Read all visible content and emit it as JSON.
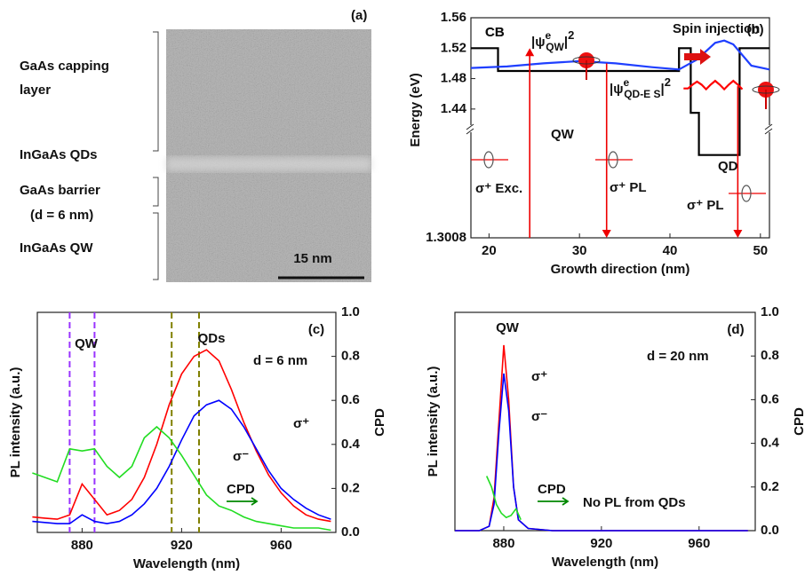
{
  "image_panel": {
    "label": "(a)",
    "layers": [
      "GaAs capping",
      "layer",
      "InGaAs QDs",
      "GaAs barrier",
      "(d = 6 nm)",
      "InGaAs QW"
    ],
    "scale_bar": "15 nm"
  },
  "chart_data": [
    {
      "type": "band-diagram",
      "label": "(b)",
      "xlabel": "Growth direction (nm)",
      "ylabel": "Energy (eV)",
      "xlim": [
        18,
        51
      ],
      "xticks": [
        20,
        30,
        40,
        50
      ],
      "ylim": [
        1.3008,
        1.56
      ],
      "y_break": 1.42,
      "yticks": [
        1.3008,
        1.44,
        1.48,
        1.52,
        1.56
      ],
      "series": [
        {
          "name": "CB",
          "color": "#000000",
          "x": [
            18,
            21,
            21,
            41,
            41,
            42.3,
            42.3,
            43.2,
            43.2,
            47.7,
            47.7,
            51
          ],
          "values": [
            1.52,
            1.52,
            1.49,
            1.49,
            1.52,
            1.52,
            1.435,
            1.435,
            1.395,
            1.395,
            1.52,
            1.52
          ]
        },
        {
          "color": "#1f3fff",
          "x": [
            18,
            22,
            26,
            30,
            34,
            38,
            41,
            43,
            45,
            46,
            47,
            49,
            51
          ],
          "values": [
            1.494,
            1.496,
            1.5,
            1.503,
            1.5,
            1.495,
            1.492,
            1.505,
            1.527,
            1.53,
            1.525,
            1.497,
            1.492
          ]
        },
        {
          "color": "#ff0000",
          "x": [
            41.5,
            42,
            42.5,
            43,
            43.5,
            44,
            44.5,
            45,
            45.5,
            46,
            46.5,
            47,
            47.5,
            48
          ],
          "values": [
            1.467,
            1.467,
            1.472,
            1.476,
            1.472,
            1.466,
            1.472,
            1.477,
            1.472,
            1.466,
            1.472,
            1.477,
            1.472,
            1.466
          ]
        }
      ],
      "arrows": [
        {
          "x": 24.5,
          "y": [
            1.3008,
            1.52
          ]
        },
        {
          "x": 33,
          "y": [
            1.5,
            1.3008
          ]
        },
        {
          "x": 47.5,
          "y": [
            1.47,
            1.3008
          ]
        }
      ],
      "annotations": [
        "CB",
        "QW",
        "QD",
        "Spin injection",
        "σ⁺ Exc.",
        "σ⁺ PL",
        "σ⁺ PL"
      ],
      "psi_labels": [
        {
          "base": "|ψ",
          "sup": "e",
          "sub": "QW",
          "close": "|",
          "pow": "2"
        },
        {
          "base": "|ψ",
          "sup": "e",
          "sub": "QD-E S",
          "close": "|",
          "pow": "2"
        }
      ]
    },
    {
      "type": "line",
      "label": "(c)",
      "xlabel": "Wavelength (nm)",
      "ylabel": "PL intensity (a.u.)",
      "y2label": "CPD",
      "xlim": [
        862,
        982
      ],
      "xticks": [
        880,
        920,
        960
      ],
      "ylim": [
        0,
        1
      ],
      "y2lim": [
        0,
        1
      ],
      "y2ticks": [
        {
          "value": 0,
          "label": "0.0"
        },
        0.2,
        0.4,
        0.6,
        0.8,
        {
          "value": 1,
          "label": "1.0"
        }
      ],
      "x": [
        860,
        865,
        870,
        875,
        880,
        885,
        890,
        895,
        900,
        905,
        910,
        915,
        920,
        925,
        930,
        935,
        940,
        945,
        950,
        955,
        960,
        965,
        970,
        975,
        980
      ],
      "series": [
        {
          "name": "σ⁺",
          "color": "#ff0000",
          "values": [
            0.07,
            0.065,
            0.06,
            0.08,
            0.22,
            0.15,
            0.08,
            0.1,
            0.15,
            0.25,
            0.4,
            0.58,
            0.72,
            0.8,
            0.83,
            0.78,
            0.65,
            0.5,
            0.37,
            0.26,
            0.18,
            0.12,
            0.08,
            0.06,
            0.05
          ]
        },
        {
          "name": "σ⁻",
          "color": "#0000ff",
          "values": [
            0.05,
            0.045,
            0.04,
            0.04,
            0.08,
            0.05,
            0.04,
            0.05,
            0.08,
            0.13,
            0.2,
            0.3,
            0.42,
            0.53,
            0.58,
            0.6,
            0.56,
            0.48,
            0.38,
            0.28,
            0.2,
            0.15,
            0.11,
            0.08,
            0.06
          ]
        },
        {
          "name": "CPD",
          "color": "#22dd22",
          "axis": "y2",
          "values": [
            0.27,
            0.25,
            0.23,
            0.38,
            0.37,
            0.38,
            0.3,
            0.25,
            0.3,
            0.43,
            0.48,
            0.43,
            0.35,
            0.26,
            0.17,
            0.12,
            0.1,
            0.07,
            0.05,
            0.04,
            0.03,
            0.02,
            0.02,
            0.02,
            0.01
          ]
        }
      ],
      "vlines": [
        {
          "x": 875,
          "color": "#9933ff"
        },
        {
          "x": 885,
          "color": "#9933ff"
        },
        {
          "x": 916,
          "color": "#808000"
        },
        {
          "x": 927,
          "color": "#808000"
        }
      ],
      "annotations": [
        "QW",
        "QDs",
        "d = 6 nm"
      ]
    },
    {
      "type": "line",
      "label": "(d)",
      "xlabel": "Wavelength (nm)",
      "ylabel": "PL intensity (a.u.)",
      "y2label": "CPD",
      "xlim": [
        860,
        983
      ],
      "xticks": [
        880,
        920,
        960
      ],
      "ylim": [
        0,
        1
      ],
      "y2lim": [
        0,
        1
      ],
      "y2ticks": [
        {
          "value": 0,
          "label": "0.0"
        },
        0.2,
        0.4,
        0.6,
        0.8,
        {
          "value": 1,
          "label": "1.0"
        }
      ],
      "series": [
        {
          "name": "σ⁺",
          "color": "#ff0000",
          "x": [
            860,
            870,
            874,
            876,
            878,
            880,
            882,
            884,
            886,
            890,
            900,
            980
          ],
          "values": [
            0,
            0,
            0.02,
            0.15,
            0.5,
            0.85,
            0.6,
            0.2,
            0.05,
            0.01,
            0,
            0
          ]
        },
        {
          "name": "σ⁻",
          "color": "#0000ff",
          "x": [
            860,
            870,
            874,
            876,
            878,
            880,
            882,
            884,
            886,
            890,
            900,
            980
          ],
          "values": [
            0,
            0,
            0.02,
            0.12,
            0.45,
            0.72,
            0.55,
            0.2,
            0.05,
            0.01,
            0,
            0
          ]
        },
        {
          "name": "CPD",
          "color": "#22dd22",
          "axis": "y2",
          "x": [
            873,
            875,
            877,
            879,
            881,
            883,
            885,
            887
          ],
          "values": [
            0.25,
            0.2,
            0.12,
            0.08,
            0.06,
            0.07,
            0.1,
            0.05
          ]
        }
      ],
      "annotations": [
        "QW",
        "d = 20 nm",
        "No PL from QDs"
      ]
    }
  ]
}
